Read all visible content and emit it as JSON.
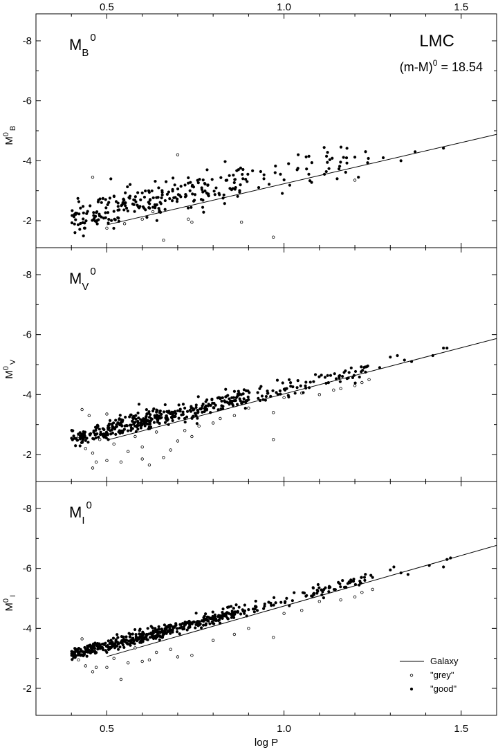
{
  "chart_data": {
    "type": "scatter",
    "figure": {
      "xlabel": "log P",
      "xlim": [
        0.3,
        1.6
      ],
      "ylim_each_panel": [
        -1.1,
        -8.9
      ],
      "x_ticks": [
        0.5,
        1.0,
        1.5
      ],
      "x_tick_labels": [
        "0.5",
        "1.0",
        "1.5"
      ],
      "y_ticks": [
        -2,
        -4,
        -6,
        -8
      ],
      "y_tick_labels": [
        "-2",
        "-4",
        "-6",
        "-8"
      ],
      "y_axis_inverted": true,
      "grid": false
    },
    "annotation": {
      "galaxy_name": "LMC",
      "modulus_pre": "(m-M)",
      "modulus_sup": "0",
      "modulus_post": " = 18.54"
    },
    "legend": {
      "placement": "bottom-right of lowest panel",
      "entries": [
        {
          "label": "Galaxy",
          "marker": "line"
        },
        {
          "label": "\"grey\"",
          "marker": "open-circle"
        },
        {
          "label": "\"good\"",
          "marker": "filled-circle"
        }
      ]
    },
    "panels": [
      {
        "id": "B",
        "label_base": "M",
        "label_sub": "B",
        "label_sup": "0",
        "ylabel_base": "M",
        "ylabel_sup": "0",
        "ylabel_sub": "B",
        "galaxy_line": {
          "x": [
            0.5,
            1.6
          ],
          "y": [
            -1.86,
            -4.88
          ]
        },
        "good_trend": {
          "x0": 0.4,
          "y0": -2.1,
          "slope": -2.5,
          "scatter": 0.3
        },
        "good_count": 280,
        "extra_good": [
          [
            1.04,
            -4.2
          ],
          [
            1.12,
            -4.15
          ],
          [
            1.2,
            -4.12
          ],
          [
            1.28,
            -4.1
          ],
          [
            1.33,
            -4.0
          ],
          [
            1.37,
            -4.3
          ],
          [
            1.45,
            -4.42
          ],
          [
            1.07,
            -3.55
          ],
          [
            1.15,
            -3.4
          ],
          [
            1.21,
            -3.45
          ],
          [
            0.99,
            -3.55
          ]
        ],
        "grey_points": [
          [
            0.46,
            -3.45
          ],
          [
            0.7,
            -4.2
          ],
          [
            0.66,
            -1.35
          ],
          [
            0.97,
            -1.45
          ],
          [
            0.88,
            -1.95
          ],
          [
            0.74,
            -1.95
          ],
          [
            0.73,
            -2.05
          ],
          [
            0.6,
            -2.05
          ],
          [
            0.5,
            -1.75
          ],
          [
            1.2,
            -3.35
          ],
          [
            0.63,
            -2.3
          ],
          [
            0.55,
            -1.9
          ]
        ]
      },
      {
        "id": "V",
        "label_base": "M",
        "label_sub": "V",
        "label_sup": "0",
        "ylabel_base": "M",
        "ylabel_sup": "0",
        "ylabel_sub": "V",
        "galaxy_line": {
          "x": [
            0.5,
            1.6
          ],
          "y": [
            -2.48,
            -5.87
          ]
        },
        "good_trend": {
          "x0": 0.4,
          "y0": -2.55,
          "slope": -2.75,
          "scatter": 0.15
        },
        "good_count": 460,
        "extra_good": [
          [
            1.3,
            -5.25
          ],
          [
            1.32,
            -5.3
          ],
          [
            1.34,
            -5.15
          ],
          [
            1.42,
            -5.3
          ],
          [
            1.45,
            -5.55
          ],
          [
            1.46,
            -5.55
          ],
          [
            1.36,
            -5.1
          ],
          [
            1.27,
            -4.9
          ],
          [
            1.23,
            -4.75
          ]
        ],
        "grey_points": [
          [
            0.46,
            -1.55
          ],
          [
            0.5,
            -1.8
          ],
          [
            0.54,
            -1.75
          ],
          [
            0.6,
            -1.85
          ],
          [
            0.62,
            -1.65
          ],
          [
            0.66,
            -1.9
          ],
          [
            0.68,
            -2.15
          ],
          [
            0.7,
            -2.45
          ],
          [
            0.72,
            -2.8
          ],
          [
            0.74,
            -2.6
          ],
          [
            0.76,
            -2.95
          ],
          [
            0.8,
            -3.05
          ],
          [
            0.86,
            -3.3
          ],
          [
            0.9,
            -3.55
          ],
          [
            0.97,
            -3.4
          ],
          [
            0.97,
            -2.5
          ],
          [
            0.44,
            -2.2
          ],
          [
            0.46,
            -2.05
          ],
          [
            0.48,
            -2.5
          ],
          [
            0.52,
            -2.35
          ],
          [
            0.56,
            -2.1
          ],
          [
            0.58,
            -2.6
          ],
          [
            0.43,
            -3.5
          ],
          [
            0.45,
            -3.3
          ],
          [
            0.5,
            -3.35
          ],
          [
            1.0,
            -3.9
          ],
          [
            1.05,
            -4.05
          ],
          [
            1.1,
            -4.0
          ],
          [
            1.14,
            -4.15
          ],
          [
            1.16,
            -4.2
          ],
          [
            1.2,
            -4.3
          ],
          [
            1.22,
            -4.4
          ],
          [
            1.24,
            -4.5
          ],
          [
            0.82,
            -3.2
          ],
          [
            0.64,
            -2.75
          ],
          [
            0.42,
            -2.6
          ],
          [
            0.47,
            -1.75
          ],
          [
            0.6,
            -2.25
          ]
        ]
      },
      {
        "id": "I",
        "label_base": "M",
        "label_sub": "I",
        "label_sup": "0",
        "ylabel_base": "M",
        "ylabel_sup": "0",
        "ylabel_sub": "I",
        "galaxy_line": {
          "x": [
            0.5,
            1.6
          ],
          "y": [
            -3.06,
            -6.77
          ]
        },
        "good_trend": {
          "x0": 0.4,
          "y0": -3.12,
          "slope": -3.05,
          "scatter": 0.1
        },
        "good_count": 520,
        "extra_good": [
          [
            1.3,
            -5.95
          ],
          [
            1.31,
            -6.05
          ],
          [
            1.33,
            -5.85
          ],
          [
            1.35,
            -5.8
          ],
          [
            1.41,
            -6.1
          ],
          [
            1.45,
            -6.05
          ],
          [
            1.46,
            -6.3
          ],
          [
            1.47,
            -6.35
          ],
          [
            1.25,
            -5.7
          ]
        ],
        "grey_points": [
          [
            0.44,
            -2.75
          ],
          [
            0.46,
            -2.55
          ],
          [
            0.47,
            -2.7
          ],
          [
            0.5,
            -2.7
          ],
          [
            0.54,
            -2.3
          ],
          [
            0.56,
            -2.85
          ],
          [
            0.6,
            -2.9
          ],
          [
            0.64,
            -3.2
          ],
          [
            0.68,
            -3.3
          ],
          [
            0.7,
            -3.05
          ],
          [
            0.74,
            -3.1
          ],
          [
            0.8,
            -3.6
          ],
          [
            0.86,
            -3.8
          ],
          [
            0.9,
            -4.0
          ],
          [
            0.97,
            -3.7
          ],
          [
            1.0,
            -4.5
          ],
          [
            1.05,
            -4.6
          ],
          [
            1.1,
            -4.9
          ],
          [
            1.16,
            -4.95
          ],
          [
            1.2,
            -5.05
          ],
          [
            1.22,
            -5.2
          ],
          [
            0.43,
            -3.65
          ],
          [
            0.45,
            -3.4
          ],
          [
            0.52,
            -3.0
          ],
          [
            0.58,
            -3.35
          ],
          [
            0.42,
            -2.95
          ],
          [
            1.25,
            -5.3
          ],
          [
            0.62,
            -2.95
          ]
        ]
      }
    ]
  }
}
